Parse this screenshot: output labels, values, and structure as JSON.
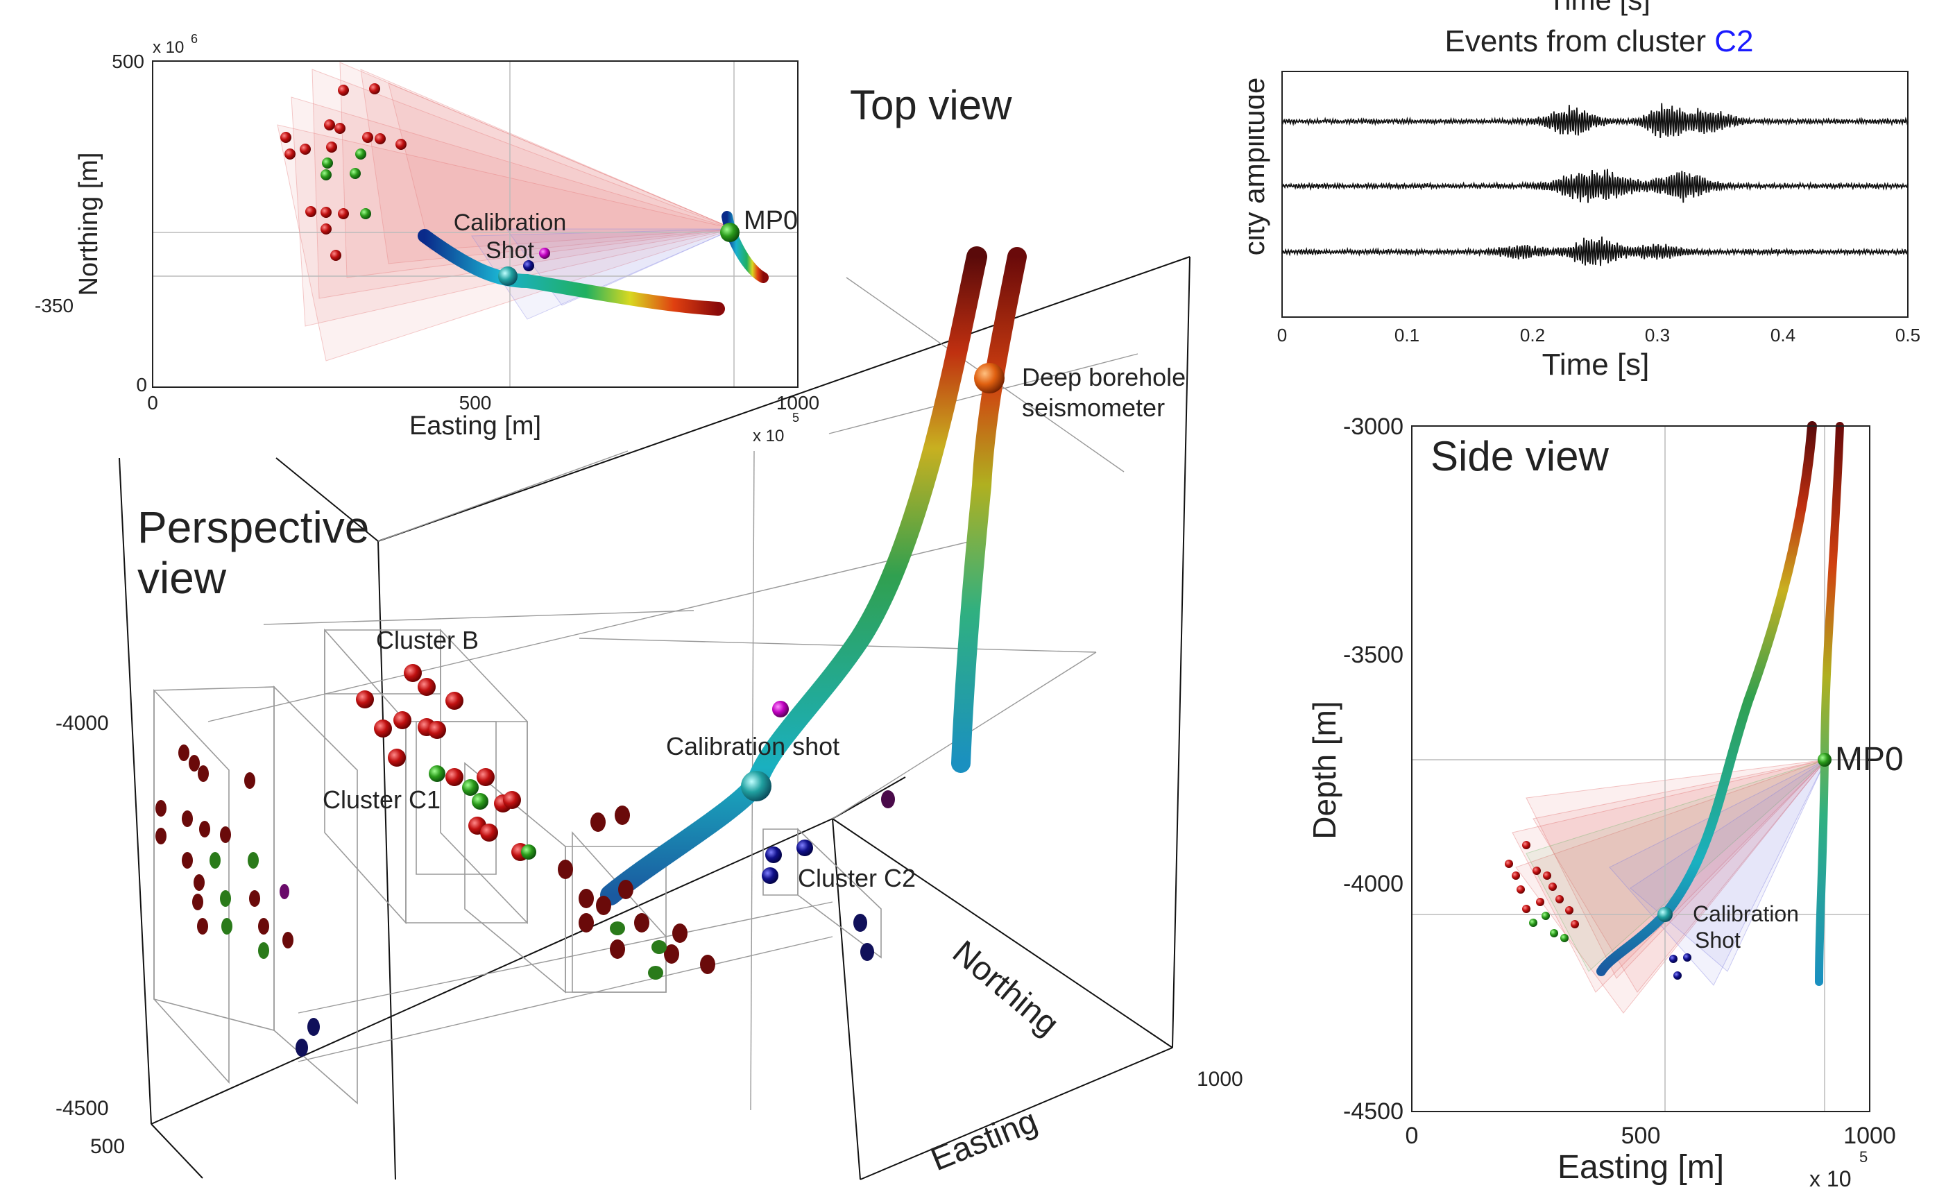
{
  "top_view": {
    "title": "Top view",
    "x_label": "Easting [m]",
    "y_label": "Northing [m]",
    "x_ticks": [
      "0",
      "500",
      "1000"
    ],
    "y_ticks": [
      "500",
      "0"
    ],
    "y_tick_clipped": "-350",
    "y_exponent": "x 10",
    "y_exponent_power": "6",
    "x_exponent": "x 10",
    "x_exponent_power": "5",
    "label_mp0": "MP0",
    "label_calib_1": "Calibration",
    "label_calib_2": "Shot"
  },
  "waveform": {
    "title_cut": "Time [s]",
    "title_prefix": "Events from cluster ",
    "title_cluster": "C2",
    "title_cluster_color": "#1a1aff",
    "y_label": "city amplitude",
    "x_label": "Time [s]",
    "x_ticks": [
      "0",
      "0.1",
      "0.2",
      "0.3",
      "0.4",
      "0.5"
    ],
    "traces": 3
  },
  "perspective": {
    "title_1": "Perspective",
    "title_2": "view",
    "label_cluster_b": "Cluster B",
    "label_cluster_c1": "Cluster C1",
    "label_cluster_c2": "Cluster C2",
    "label_calib": "Calibration shot",
    "label_deep_1": "Deep borehole",
    "label_deep_2": "seismometer",
    "axis_northing": "Northing",
    "axis_easting": "Easting",
    "tick_minus4000": "-4000",
    "tick_minus4500": "-4500",
    "tick_500": "500",
    "tick_1000": "1000"
  },
  "side_view": {
    "title": "Side view",
    "x_label": "Easting [m]",
    "y_label": "Depth [m]",
    "x_ticks": [
      "0",
      "500",
      "1000"
    ],
    "y_ticks": [
      "-3000",
      "-3500",
      "-4000",
      "-4500"
    ],
    "x_exponent": "x 10",
    "x_exponent_power": "5",
    "label_mp0": "MP0",
    "label_calib_1": "Calibration",
    "label_calib_2": "Shot"
  },
  "colors": {
    "event_red": "#c01010",
    "event_green": "#2a9a1a",
    "event_blue": "#10108a",
    "calib_magenta": "#c000c0",
    "fan_red": "#e05050",
    "fan_blue": "#8080e0"
  }
}
